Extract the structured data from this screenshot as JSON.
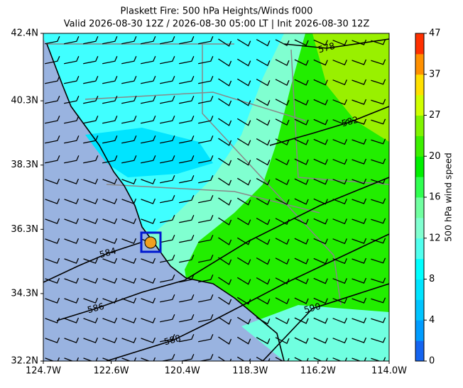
{
  "chart_data": {
    "type": "contour-map",
    "title": "Plaskett Fire: 500 hPa Heights/Winds f000",
    "subtitle": "Valid 2026-08-30 12Z / 2026-08-30 05:00 LT | Init 2026-08-30 12Z",
    "xlim": [
      -124.7,
      -114.0
    ],
    "ylim": [
      32.2,
      42.4
    ],
    "xticks": [
      {
        "value": -124.7,
        "label": "124.7W"
      },
      {
        "value": -122.6,
        "label": "122.6W"
      },
      {
        "value": -120.4,
        "label": "120.4W"
      },
      {
        "value": -118.3,
        "label": "118.3W"
      },
      {
        "value": -116.2,
        "label": "116.2W"
      },
      {
        "value": -114.0,
        "label": "114.0W"
      }
    ],
    "yticks": [
      {
        "value": 32.2,
        "label": "32.2N"
      },
      {
        "value": 34.3,
        "label": "34.3N"
      },
      {
        "value": 36.3,
        "label": "36.3N"
      },
      {
        "value": 38.3,
        "label": "38.3N"
      },
      {
        "value": 40.3,
        "label": "40.3N"
      },
      {
        "value": 42.4,
        "label": "42.4N"
      }
    ],
    "contours": {
      "values": [
        578,
        582,
        584,
        586,
        588,
        590
      ]
    },
    "colorbar": {
      "label": "500 hPa wind speed",
      "ticks": [
        0,
        4,
        8,
        12,
        16,
        20,
        27,
        37,
        47
      ],
      "colors": [
        "#1464f0",
        "#009cff",
        "#00c4ff",
        "#00e4ff",
        "#00ffff",
        "#50ffee",
        "#80ffd0",
        "#70ffa0",
        "#30ff50",
        "#00f000",
        "#3cf000",
        "#80f400",
        "#d0ff00",
        "#ffe000",
        "#ff9000",
        "#ff3000"
      ]
    }
  }
}
